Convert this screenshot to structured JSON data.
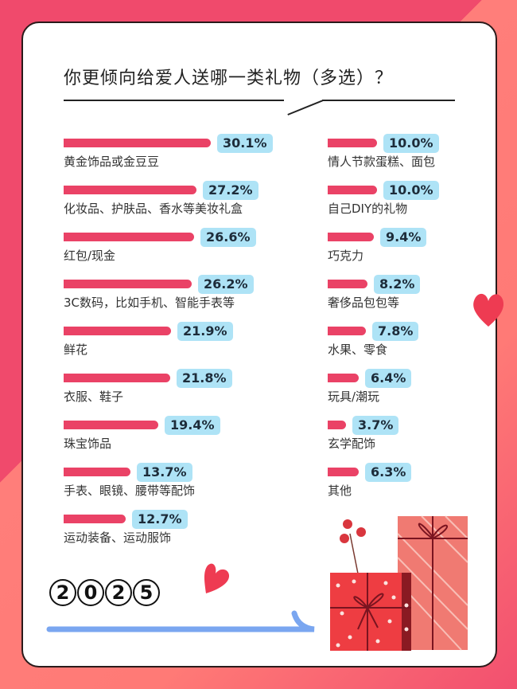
{
  "chart_data": {
    "type": "bar",
    "title": "你更倾向给爱人送哪一类礼物（多选）？",
    "unit": "%",
    "left_column": [
      {
        "label": "黄金饰品或金豆豆",
        "value": 30.1,
        "display": "30.1%"
      },
      {
        "label": "化妆品、护肤品、香水等美妆礼盒",
        "value": 27.2,
        "display": "27.2%"
      },
      {
        "label": "红包/现金",
        "value": 26.6,
        "display": "26.6%"
      },
      {
        "label": "3C数码，比如手机、智能手表等",
        "value": 26.2,
        "display": "26.2%"
      },
      {
        "label": "鲜花",
        "value": 21.9,
        "display": "21.9%"
      },
      {
        "label": "衣服、鞋子",
        "value": 21.8,
        "display": "21.8%"
      },
      {
        "label": "珠宝饰品",
        "value": 19.4,
        "display": "19.4%"
      },
      {
        "label": "手表、眼镜、腰带等配饰",
        "value": 13.7,
        "display": "13.7%"
      },
      {
        "label": "运动装备、运动服饰",
        "value": 12.7,
        "display": "12.7%"
      }
    ],
    "right_column": [
      {
        "label": "情人节款蛋糕、面包",
        "value": 10.0,
        "display": "10.0%"
      },
      {
        "label": "自己DIY的礼物",
        "value": 10.0,
        "display": "10.0%"
      },
      {
        "label": "巧克力",
        "value": 9.4,
        "display": "9.4%"
      },
      {
        "label": "奢侈品包包等",
        "value": 8.2,
        "display": "8.2%"
      },
      {
        "label": "水果、零食",
        "value": 7.8,
        "display": "7.8%"
      },
      {
        "label": "玩具/潮玩",
        "value": 6.4,
        "display": "6.4%"
      },
      {
        "label": "玄学配饰",
        "value": 3.7,
        "display": "3.7%"
      },
      {
        "label": "其他",
        "value": 6.3,
        "display": "6.3%"
      }
    ],
    "colors": {
      "bar": "#ea4266",
      "badge": "#aee3f6"
    }
  },
  "year_digits": [
    "2",
    "0",
    "2",
    "5"
  ]
}
